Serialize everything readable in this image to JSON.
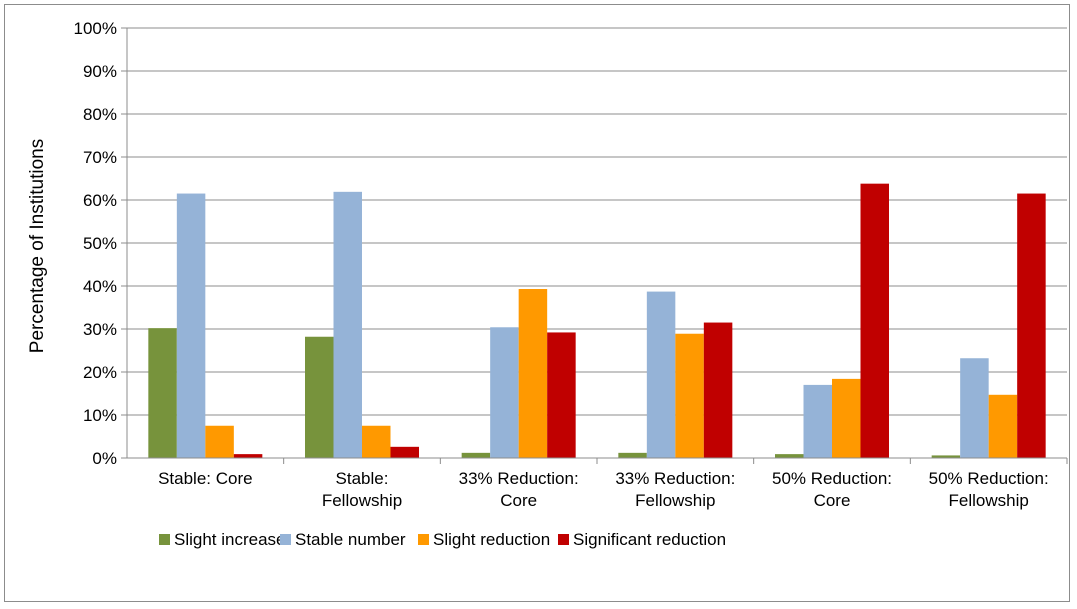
{
  "chart_data": {
    "type": "bar",
    "title": "",
    "xlabel": "",
    "ylabel": "Percentage  of Institutions",
    "ylim": [
      0,
      100
    ],
    "yticks": [
      "0%",
      "10%",
      "20%",
      "30%",
      "40%",
      "50%",
      "60%",
      "70%",
      "80%",
      "90%",
      "100%"
    ],
    "grid": true,
    "legend_position": "bottom",
    "categories": [
      [
        "Stable: Core"
      ],
      [
        "Stable:",
        "Fellowship"
      ],
      [
        "33% Reduction:",
        "Core"
      ],
      [
        "33% Reduction:",
        "Fellowship"
      ],
      [
        "50% Reduction:",
        "Core"
      ],
      [
        "50% Reduction:",
        "Fellowship"
      ]
    ],
    "series": [
      {
        "name": "Slight increase",
        "color": "#77933c",
        "values": [
          30.2,
          28.2,
          1.2,
          1.2,
          0.9,
          0.6
        ]
      },
      {
        "name": "Stable number",
        "color": "#95b3d7",
        "values": [
          61.5,
          61.9,
          30.4,
          38.7,
          17.0,
          23.2
        ]
      },
      {
        "name": "Slight reduction",
        "color": "#ff9900",
        "values": [
          7.5,
          7.5,
          39.3,
          28.9,
          18.4,
          14.7
        ]
      },
      {
        "name": "Significant reduction",
        "color": "#c00000",
        "values": [
          0.9,
          2.6,
          29.2,
          31.5,
          63.8,
          61.5
        ]
      }
    ]
  }
}
